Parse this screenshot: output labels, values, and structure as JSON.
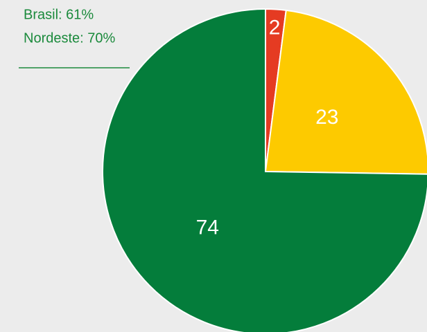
{
  "chart_data": {
    "type": "pie",
    "annotations": [
      "Brasil: 61%",
      "Nordeste: 70%"
    ],
    "values": [
      2,
      23,
      74
    ],
    "colors": [
      "#e53b22",
      "#fdca00",
      "#047d3b"
    ]
  }
}
